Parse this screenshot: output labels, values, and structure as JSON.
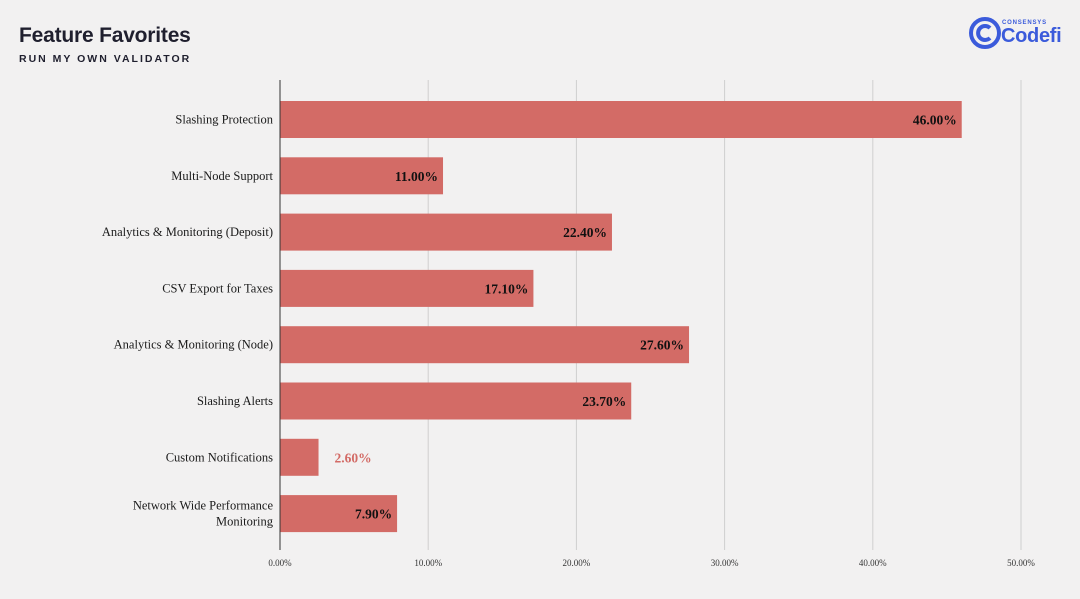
{
  "header": {
    "title": "Feature Favorites",
    "subtitle": "RUN MY OWN VALIDATOR"
  },
  "logo": {
    "small_text": "CONSENSYS",
    "word": "Codefi",
    "color": "#3b5bdb"
  },
  "chart_data": {
    "type": "bar",
    "orientation": "horizontal",
    "categories": [
      "Slashing Protection",
      "Multi-Node Support",
      "Analytics & Monitoring (Deposit)",
      "CSV Export for Taxes",
      "Analytics & Monitoring (Node)",
      "Slashing Alerts",
      "Custom Notifications",
      "Network Wide Performance Monitoring"
    ],
    "category_lines": [
      [
        "Slashing Protection"
      ],
      [
        "Multi-Node Support"
      ],
      [
        "Analytics & Monitoring (Deposit)"
      ],
      [
        "CSV Export for Taxes"
      ],
      [
        "Analytics & Monitoring (Node)"
      ],
      [
        "Slashing Alerts"
      ],
      [
        "Custom Notifications"
      ],
      [
        "Network Wide Performance",
        "Monitoring"
      ]
    ],
    "values": [
      46.0,
      11.0,
      22.4,
      17.1,
      27.6,
      23.7,
      2.6,
      7.9
    ],
    "data_labels": [
      "46.00%",
      "11.00%",
      "22.40%",
      "17.10%",
      "27.60%",
      "23.70%",
      "2.60%",
      "7.90%"
    ],
    "xlim": [
      0,
      50
    ],
    "xticks": [
      "0.00%",
      "10.00%",
      "20.00%",
      "30.00%",
      "40.00%",
      "50.00%"
    ],
    "grid": true,
    "bar_color": "#d36b66",
    "label_color_inside": "#111111",
    "label_color_outside": "#d36b66"
  }
}
